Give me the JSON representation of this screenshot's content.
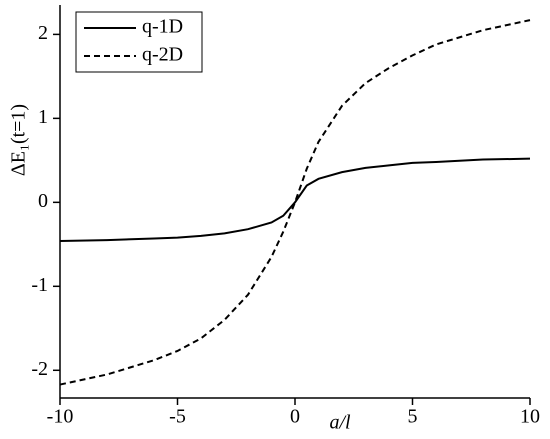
{
  "chart_data": {
    "type": "line",
    "x_label": "a/l",
    "y_label": "ΔE₁(t=1)",
    "x": [
      -10,
      -8,
      -6,
      -5,
      -4,
      -3,
      -2,
      -1,
      -0.5,
      0,
      0.5,
      1,
      2,
      3,
      4,
      5,
      6,
      8,
      10
    ],
    "series": [
      {
        "name": "q-1D",
        "color": "#000000",
        "line_style": "solid",
        "values": [
          -0.46,
          -0.45,
          -0.43,
          -0.42,
          -0.4,
          -0.37,
          -0.32,
          -0.24,
          -0.16,
          0.0,
          0.2,
          0.28,
          0.36,
          0.41,
          0.44,
          0.47,
          0.48,
          0.51,
          0.52
        ]
      },
      {
        "name": "q-2D",
        "color": "#000000",
        "line_style": "dashed",
        "values": [
          -2.17,
          -2.05,
          -1.88,
          -1.77,
          -1.62,
          -1.4,
          -1.1,
          -0.65,
          -0.35,
          0.0,
          0.4,
          0.72,
          1.15,
          1.42,
          1.6,
          1.75,
          1.88,
          2.05,
          2.17
        ]
      }
    ],
    "xlim": [
      -10,
      10
    ],
    "xticks": [
      -10,
      -5,
      0,
      5,
      10
    ],
    "ylim": [
      -2.33,
      2.35
    ],
    "yticks": [
      -2,
      -1,
      0,
      1,
      2
    ],
    "legend": "top-left"
  }
}
